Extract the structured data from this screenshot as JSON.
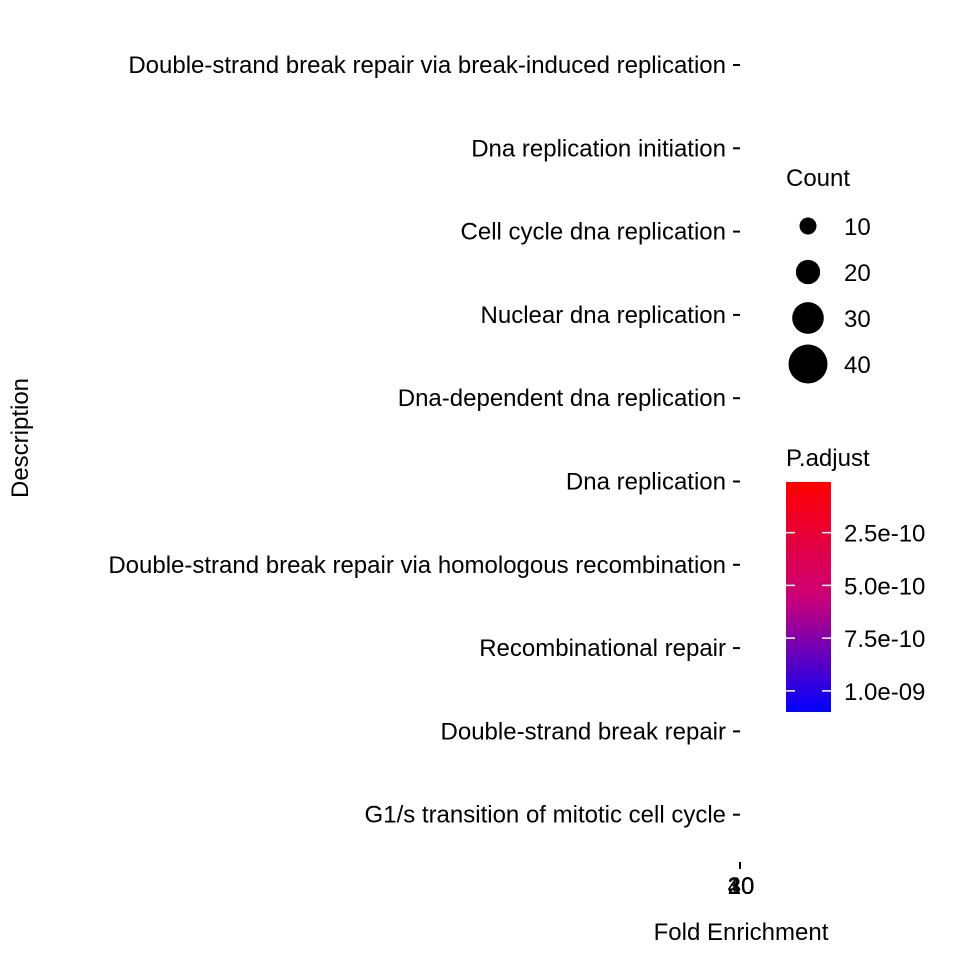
{
  "chart_data": {
    "type": "scatter",
    "xlabel": "Fold Enrichment",
    "ylabel": "Description",
    "categories": [
      "Double-strand break repair via break-induced replication",
      "Dna replication initiation",
      "Cell cycle dna replication",
      "Nuclear dna replication",
      "Dna-dependent dna replication",
      "Dna replication",
      "Double-strand break repair via homologous recombination",
      "Recombinational repair",
      "Double-strand break repair",
      "G1/s transition of mitotic cell cycle"
    ],
    "x_ticks": [
      "20",
      "30",
      "40",
      "10"
    ],
    "size_legend": {
      "title": "Count",
      "values": [
        10,
        20,
        30,
        40
      ],
      "labels": [
        "10",
        "20",
        "30",
        "40"
      ]
    },
    "color_legend": {
      "title": "P.adjust",
      "labels": [
        "2.5e-10",
        "5.0e-10",
        "7.5e-10",
        "1.0e-09"
      ],
      "values": [
        2.5e-10,
        5e-10,
        7.5e-10,
        1e-09
      ],
      "range": [
        1e-11,
        1.1e-09
      ],
      "low_color": "#ff0000",
      "high_color": "#0000ff"
    },
    "grid": false
  }
}
